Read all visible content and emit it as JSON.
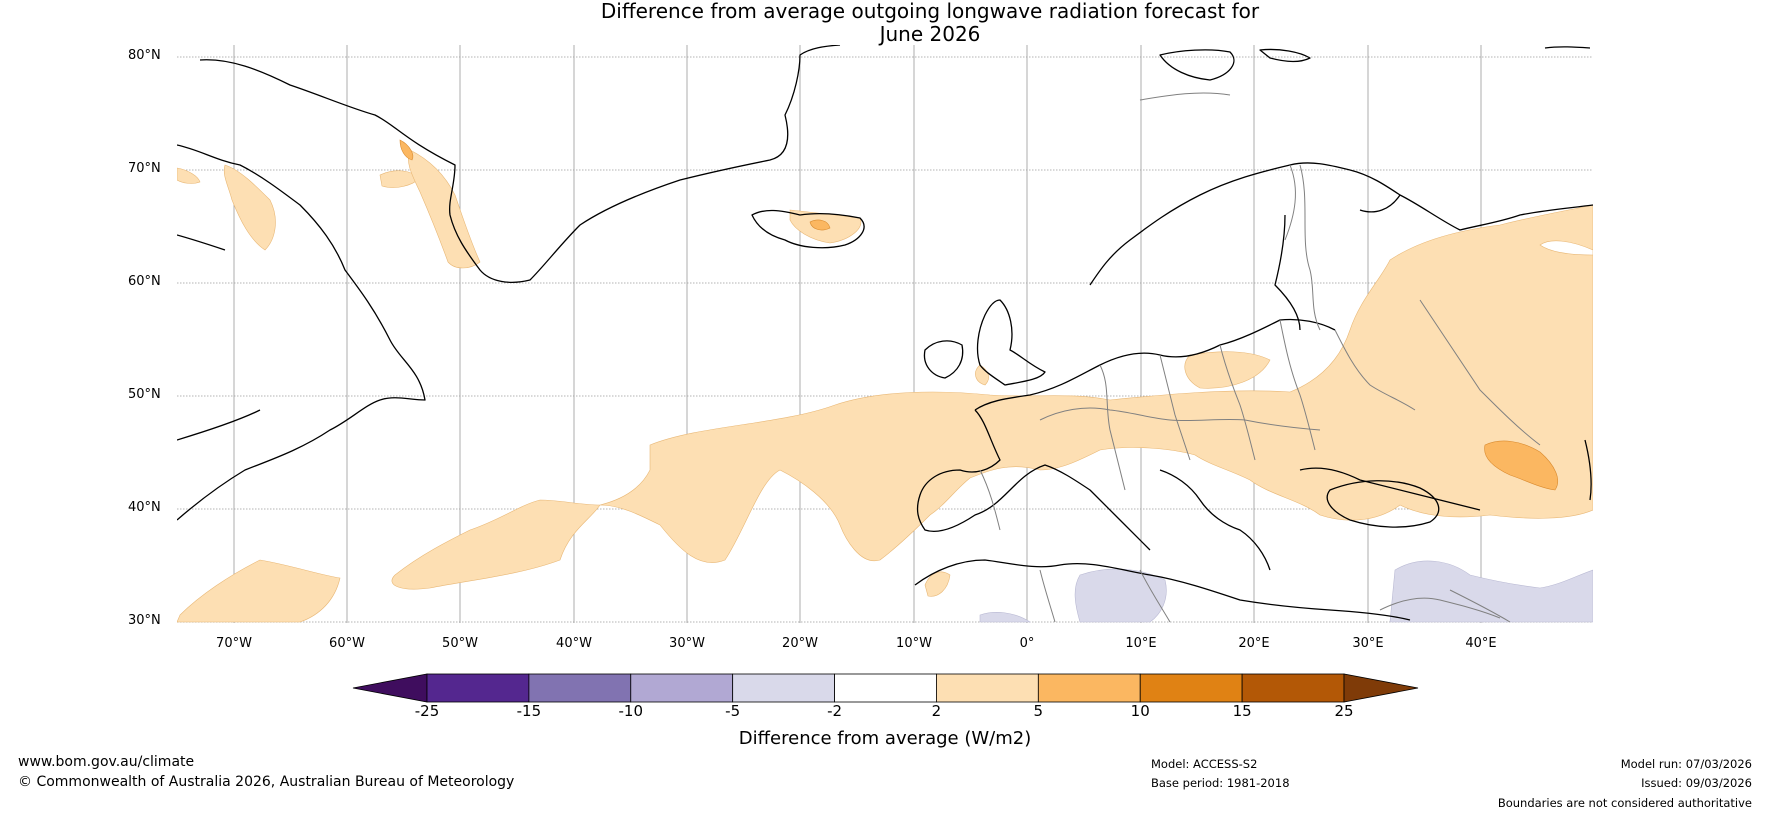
{
  "title": {
    "line1": "Difference from average outgoing longwave radiation forecast for",
    "line2": "June 2026"
  },
  "map": {
    "lat_labels": [
      "80°N",
      "70°N",
      "60°N",
      "50°N",
      "40°N",
      "30°N"
    ],
    "lon_labels": [
      "70°W",
      "60°W",
      "50°W",
      "40°W",
      "30°W",
      "20°W",
      "10°W",
      "0°",
      "10°E",
      "20°E",
      "30°E",
      "40°E"
    ],
    "lat_range": [
      30,
      81
    ],
    "lon_range": [
      -75,
      50
    ],
    "colors": {
      "pos_2_5": "#fddfb3",
      "pos_5_10": "#fbb761",
      "neg_2_5": "#d9d9ea",
      "coast": "#000000",
      "border": "#808080"
    }
  },
  "colorbar": {
    "title": "Difference from average (W/m2)",
    "ticks": [
      "-25",
      "-15",
      "-10",
      "-5",
      "-2",
      "2",
      "5",
      "10",
      "15",
      "25"
    ],
    "colors": [
      "#3f0d5e",
      "#54278f",
      "#8173b1",
      "#b1a8d3",
      "#d9d9ea",
      "#ffffff",
      "#fddfb3",
      "#fbb761",
      "#e08214",
      "#b35806",
      "#7f3b08"
    ]
  },
  "footer": {
    "website": "www.bom.gov.au/climate",
    "copyright": "© Commonwealth of Australia 2026, Australian Bureau of Meteorology",
    "model": "Model: ACCESS-S2",
    "base_period": "Base period: 1981-2018",
    "model_run": "Model run: 07/03/2026",
    "issued": "Issued: 09/03/2026",
    "disclaimer": "Boundaries are not considered authoritative"
  }
}
